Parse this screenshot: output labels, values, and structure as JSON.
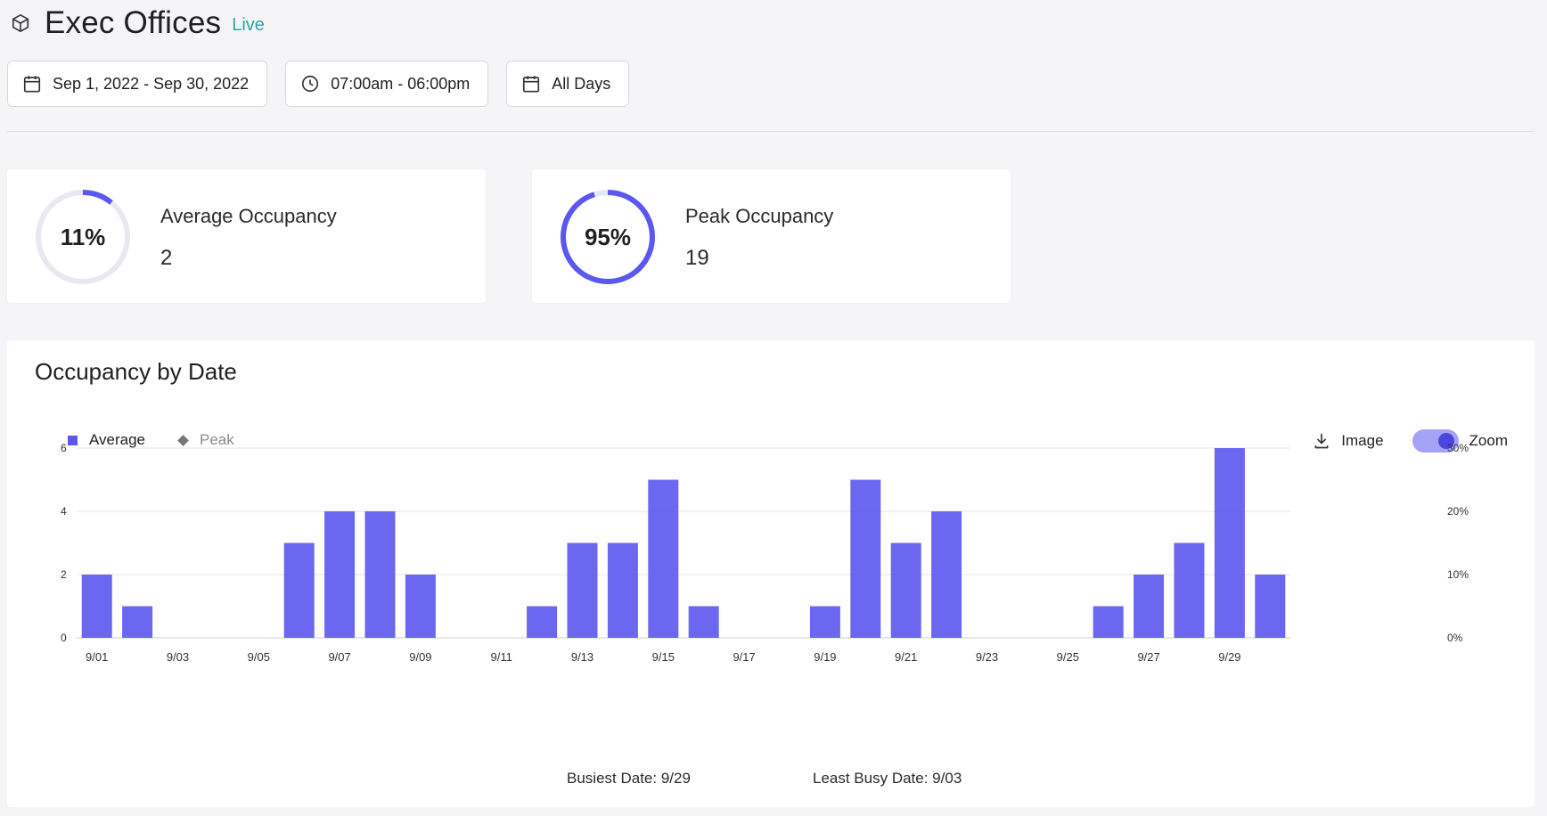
{
  "header": {
    "title": "Exec Offices",
    "status": "Live",
    "icon": "cube-icon"
  },
  "filters": {
    "date_range": "Sep 1, 2022 - Sep 30, 2022",
    "time_range": "07:00am - 06:00pm",
    "days": "All Days"
  },
  "kpis": {
    "average": {
      "percent_label": "11%",
      "percent": 11,
      "title": "Average Occupancy",
      "value": "2"
    },
    "peak": {
      "percent_label": "95%",
      "percent": 95,
      "title": "Peak Occupancy",
      "value": "19"
    }
  },
  "chart_panel": {
    "title": "Occupancy by Date",
    "legend": {
      "average": "Average",
      "peak": "Peak"
    },
    "image_label": "Image",
    "zoom_label": "Zoom",
    "busiest": "Busiest Date: 9/29",
    "least_busy": "Least Busy Date: 9/03"
  },
  "colors": {
    "accent": "#5b57f0",
    "ring_track": "#e8e8f0",
    "live": "#2aa8a0"
  },
  "chart_data": {
    "type": "bar",
    "x": [
      "9/01",
      "9/02",
      "9/03",
      "9/04",
      "9/05",
      "9/06",
      "9/07",
      "9/08",
      "9/09",
      "9/10",
      "9/11",
      "9/12",
      "9/13",
      "9/14",
      "9/15",
      "9/16",
      "9/17",
      "9/18",
      "9/19",
      "9/20",
      "9/21",
      "9/22",
      "9/23",
      "9/24",
      "9/25",
      "9/26",
      "9/27",
      "9/28",
      "9/29",
      "9/30"
    ],
    "series": [
      {
        "name": "Average",
        "values": [
          2,
          1,
          0,
          0,
          0,
          3,
          4,
          4,
          2,
          0,
          0,
          1,
          3,
          3,
          5,
          1,
          0,
          0,
          1,
          5,
          3,
          4,
          0,
          0,
          0,
          1,
          2,
          3,
          6,
          2
        ]
      }
    ],
    "x_tick_labels": [
      "9/01",
      "9/03",
      "9/05",
      "9/07",
      "9/09",
      "9/11",
      "9/13",
      "9/15",
      "9/17",
      "9/19",
      "9/21",
      "9/23",
      "9/25",
      "9/27",
      "9/29"
    ],
    "y_ticks": [
      0,
      2,
      4,
      6
    ],
    "ylim": [
      0,
      6
    ],
    "y2_ticks": [
      "0%",
      "10%",
      "20%",
      "30%"
    ],
    "y2lim": [
      0,
      30
    ],
    "grid": true,
    "legend_position": "top-left"
  }
}
